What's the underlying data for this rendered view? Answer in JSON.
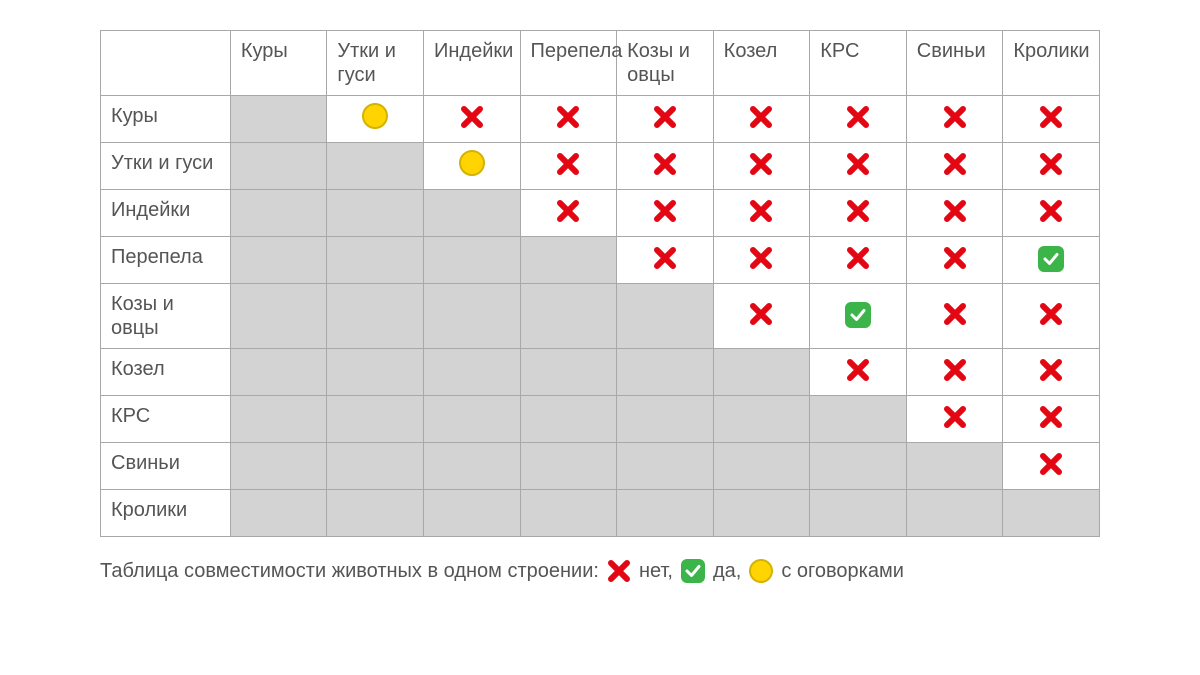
{
  "type": "compatibility-matrix-table",
  "colors": {
    "no": "#e30613",
    "yes_bg": "#3bb54a",
    "yes_fg": "#ffffff",
    "maybe_fill": "#ffd400",
    "maybe_edge": "#d4b200",
    "gray": "#d3d3d3",
    "border": "#a8a8a8",
    "text": "#555555",
    "background": "#ffffff"
  },
  "font": {
    "family": "sans-serif",
    "size_pt": 15,
    "weight": "normal"
  },
  "columns": [
    "Куры",
    "Утки и гуси",
    "Индейки",
    "Перепела",
    "Козы и овцы",
    "Козел",
    "КРС",
    "Свиньи",
    "Кролики"
  ],
  "rows": [
    "Куры",
    "Утки и гуси",
    "Индейки",
    "Перепела",
    "Козы и овцы",
    "Козел",
    "КРС",
    "Свиньи",
    "Кролики"
  ],
  "cells": [
    [
      "gray",
      "maybe",
      "no",
      "no",
      "no",
      "no",
      "no",
      "no",
      "no"
    ],
    [
      "gray",
      "gray",
      "maybe",
      "no",
      "no",
      "no",
      "no",
      "no",
      "no"
    ],
    [
      "gray",
      "gray",
      "gray",
      "no",
      "no",
      "no",
      "no",
      "no",
      "no"
    ],
    [
      "gray",
      "gray",
      "gray",
      "gray",
      "no",
      "no",
      "no",
      "no",
      "yes"
    ],
    [
      "gray",
      "gray",
      "gray",
      "gray",
      "gray",
      "no",
      "yes",
      "no",
      "no"
    ],
    [
      "gray",
      "gray",
      "gray",
      "gray",
      "gray",
      "gray",
      "no",
      "no",
      "no"
    ],
    [
      "gray",
      "gray",
      "gray",
      "gray",
      "gray",
      "gray",
      "gray",
      "no",
      "no"
    ],
    [
      "gray",
      "gray",
      "gray",
      "gray",
      "gray",
      "gray",
      "gray",
      "gray",
      "no"
    ],
    [
      "gray",
      "gray",
      "gray",
      "gray",
      "gray",
      "gray",
      "gray",
      "gray",
      "gray"
    ]
  ],
  "legend": {
    "title": "Таблица совместимости животных в одном строении:",
    "items": [
      {
        "symbol": "no",
        "label": "нет,"
      },
      {
        "symbol": "yes",
        "label": "да,"
      },
      {
        "symbol": "maybe",
        "label": "с оговорками"
      }
    ]
  }
}
